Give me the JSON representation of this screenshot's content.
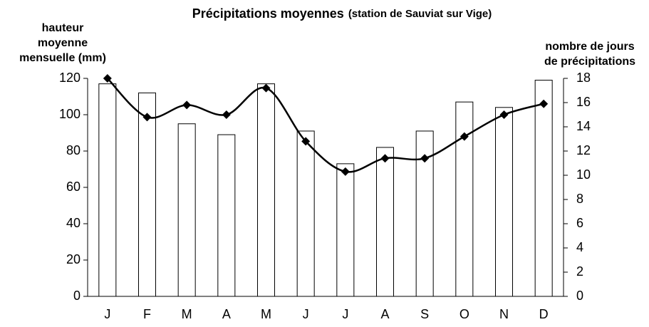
{
  "chart_data": {
    "type": "bar_line",
    "title": "Précipitations moyennes",
    "subtitle": "(station de Sauviat sur Vige)",
    "y_label": [
      "hauteur",
      "moyenne",
      "mensuelle (mm)"
    ],
    "y2_label": [
      "nombre de jours",
      "de précipitations"
    ],
    "categories": [
      "J",
      "F",
      "M",
      "A",
      "M",
      "J",
      "J",
      "A",
      "S",
      "O",
      "N",
      "D"
    ],
    "series": [
      {
        "type": "bar",
        "color": "#ffffff",
        "values": [
          117,
          112,
          95,
          89,
          117,
          91,
          73,
          82,
          91,
          107,
          104,
          119
        ]
      },
      {
        "type": "line",
        "axis": "y2",
        "color": "#000000",
        "values": [
          18,
          14.8,
          15.8,
          15,
          17.2,
          12.8,
          10.3,
          11.4,
          11.4,
          13.2,
          15,
          15.9
        ]
      }
    ],
    "ylim": [
      0,
      120
    ],
    "yticks": [
      0,
      20,
      40,
      60,
      80,
      100,
      120
    ],
    "y2lim": [
      0,
      18
    ],
    "y2ticks": [
      0,
      2,
      4,
      6,
      8,
      10,
      12,
      14,
      16,
      18
    ]
  }
}
